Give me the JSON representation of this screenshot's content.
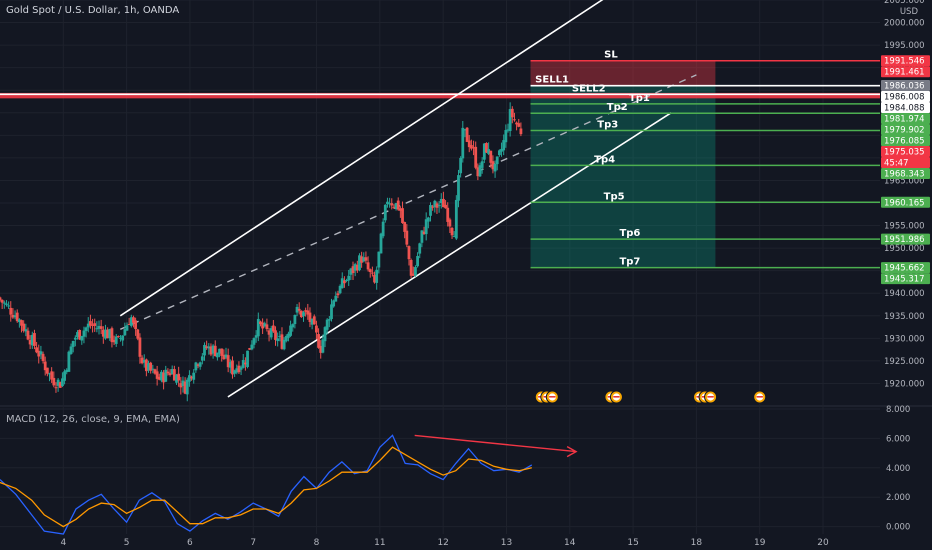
{
  "header": {
    "title": "Gold Spot / U.S. Dollar, 1h, OANDA",
    "currency": "USD"
  },
  "macd_label": "MACD (12, 26, close, 9, EMA, EMA)",
  "colors": {
    "background": "#131722",
    "bull": "#26a69a",
    "bear": "#ef5350",
    "channel": "#ffffff",
    "sl_red": "#f23645",
    "tp_green": "#4caf50",
    "macd_blue": "#2962ff",
    "signal_orange": "#ff9800"
  },
  "chart_data": [
    {
      "type": "candlestick",
      "title": "Gold Spot / U.S. Dollar, 1h, OANDA",
      "y_axis_unit": "USD",
      "ylim": [
        1915,
        2005
      ],
      "y_ticks": [
        1920,
        1925,
        1930,
        1935,
        1940,
        1945,
        1950,
        1955,
        1960,
        1965,
        1970,
        1975,
        1980,
        1985,
        1990,
        1995,
        2000,
        2005
      ],
      "x_tick_labels": [
        "4",
        "5",
        "6",
        "7",
        "8",
        "11",
        "12",
        "13",
        "14",
        "15",
        "18",
        "19",
        "20"
      ],
      "x_tick_positions": [
        4,
        5,
        6,
        7,
        8,
        9,
        10,
        11,
        12,
        13,
        14,
        15,
        16
      ],
      "xlim": [
        3.0,
        16.9
      ],
      "path_x": [
        3.0,
        3.3,
        3.6,
        3.85,
        4.0,
        4.2,
        4.45,
        4.65,
        4.9,
        5.1,
        5.3,
        5.55,
        5.75,
        5.95,
        6.1,
        6.3,
        6.5,
        6.7,
        6.9,
        7.1,
        7.3,
        7.5,
        7.7,
        7.9,
        8.1,
        8.3,
        8.55,
        8.75,
        8.95,
        9.15,
        9.35,
        9.55,
        9.7,
        9.85,
        10.05,
        10.2,
        10.35,
        10.5,
        10.6,
        10.7,
        10.85,
        11.0,
        11.1,
        11.25
      ],
      "path_close": [
        1939,
        1935,
        1928,
        1921,
        1920,
        1930,
        1933,
        1932,
        1929,
        1935,
        1924,
        1921,
        1923,
        1919,
        1924,
        1928,
        1927,
        1923,
        1925,
        1933,
        1931,
        1929,
        1936,
        1935,
        1928,
        1939,
        1944,
        1948,
        1942,
        1961,
        1959,
        1943,
        1953,
        1959,
        1960,
        1953,
        1976,
        1972,
        1966,
        1973,
        1967,
        1974,
        1980,
        1976
      ],
      "levels": [
        {
          "label": "SL",
          "value": 1991.546,
          "role": "stop"
        },
        {
          "label": "SELL1",
          "value": 1986.008,
          "role": "entry"
        },
        {
          "label": "SELL2",
          "value": 1984.088,
          "role": "entry"
        },
        {
          "label": "Tp1",
          "value": 1981.974,
          "role": "target"
        },
        {
          "label": "Tp2",
          "value": 1979.902,
          "role": "target"
        },
        {
          "label": "Tp3",
          "value": 1976.085,
          "role": "target"
        },
        {
          "label": "Tp4",
          "value": 1968.343,
          "role": "target"
        },
        {
          "label": "Tp5",
          "value": 1960.165,
          "role": "target"
        },
        {
          "label": "Tp6",
          "value": 1951.986,
          "role": "target"
        },
        {
          "label": "Tp7",
          "value": 1945.662,
          "role": "target"
        }
      ],
      "resistance_zone": [
        1983.2,
        1984.4
      ],
      "price_tags": [
        {
          "text": "1991.546",
          "value": 1991.546,
          "color": "#f23645",
          "fg": "#ffffff"
        },
        {
          "text": "1991.461",
          "value": 1991.461,
          "color": "#f23645",
          "fg": "#ffffff"
        },
        {
          "text": "1986.036",
          "value": 1986.036,
          "color": "#787b86",
          "fg": "#ffffff"
        },
        {
          "text": "1986.008",
          "value": 1986.008,
          "color": "#ffffff",
          "fg": "#131722"
        },
        {
          "text": "1984.088",
          "value": 1984.088,
          "color": "#ffffff",
          "fg": "#131722"
        },
        {
          "text": "1981.974",
          "value": 1981.974,
          "color": "#4caf50",
          "fg": "#ffffff"
        },
        {
          "text": "1979.902",
          "value": 1979.902,
          "color": "#4caf50",
          "fg": "#ffffff"
        },
        {
          "text": "1976.085",
          "value": 1976.085,
          "color": "#4caf50",
          "fg": "#ffffff"
        },
        {
          "text": "1975.035",
          "value": 1975.035,
          "color": "#f23645",
          "fg": "#ffffff"
        },
        {
          "text": "45:47",
          "value": 1972.9,
          "color": "#f23645",
          "fg": "#ffffff"
        },
        {
          "text": "1968.343",
          "value": 1968.343,
          "color": "#4caf50",
          "fg": "#ffffff"
        },
        {
          "text": "1960.165",
          "value": 1960.165,
          "color": "#4caf50",
          "fg": "#ffffff"
        },
        {
          "text": "1951.986",
          "value": 1951.986,
          "color": "#4caf50",
          "fg": "#ffffff"
        },
        {
          "text": "1945.662",
          "value": 1945.662,
          "color": "#4caf50",
          "fg": "#ffffff"
        },
        {
          "text": "1945.317",
          "value": 1945.317,
          "color": "#4caf50",
          "fg": "#ffffff"
        }
      ],
      "event_markers": [
        {
          "x": 11.55,
          "count": 3
        },
        {
          "x": 12.65,
          "count": 2
        },
        {
          "x": 14.05,
          "count": 3
        },
        {
          "x": 15.0,
          "count": 1
        }
      ]
    },
    {
      "type": "line",
      "title": "MACD (12, 26, close, 9, EMA, EMA)",
      "ylim": [
        -0.5,
        8.2
      ],
      "y_ticks": [
        0,
        2,
        4,
        6,
        8
      ],
      "y_tick_labels": [
        "0.000",
        "2.000",
        "4.000",
        "6.000",
        "8.000"
      ],
      "series": [
        {
          "role": "macd",
          "color": "#2962ff",
          "x": [
            3.0,
            3.25,
            3.5,
            3.7,
            4.0,
            4.2,
            4.4,
            4.6,
            4.8,
            5.0,
            5.2,
            5.4,
            5.6,
            5.8,
            6.0,
            6.2,
            6.4,
            6.6,
            6.8,
            7.0,
            7.2,
            7.4,
            7.6,
            7.8,
            8.0,
            8.2,
            8.4,
            8.6,
            8.8,
            9.0,
            9.2,
            9.4,
            9.6,
            9.8,
            10.0,
            10.2,
            10.4,
            10.6,
            10.8,
            11.0,
            11.2,
            11.4
          ],
          "y": [
            3.2,
            2.2,
            0.8,
            -0.3,
            -0.5,
            1.2,
            1.8,
            2.2,
            1.2,
            0.3,
            1.8,
            2.3,
            1.7,
            0.2,
            -0.3,
            0.4,
            0.9,
            0.5,
            1.0,
            1.6,
            1.2,
            0.7,
            2.4,
            3.4,
            2.6,
            3.7,
            4.4,
            3.6,
            3.8,
            5.4,
            6.2,
            4.3,
            4.2,
            3.6,
            3.2,
            4.3,
            5.3,
            4.3,
            3.8,
            3.9,
            3.7,
            4.2
          ]
        },
        {
          "role": "signal",
          "color": "#ff9800",
          "x": [
            3.0,
            3.25,
            3.5,
            3.7,
            4.0,
            4.2,
            4.4,
            4.6,
            4.8,
            5.0,
            5.2,
            5.4,
            5.6,
            5.8,
            6.0,
            6.2,
            6.4,
            6.6,
            6.8,
            7.0,
            7.2,
            7.4,
            7.6,
            7.8,
            8.0,
            8.2,
            8.4,
            8.6,
            8.8,
            9.0,
            9.2,
            9.4,
            9.6,
            9.8,
            10.0,
            10.2,
            10.4,
            10.6,
            10.8,
            11.0,
            11.2,
            11.4
          ],
          "y": [
            3.0,
            2.6,
            1.8,
            0.8,
            0.0,
            0.5,
            1.2,
            1.6,
            1.5,
            0.9,
            1.3,
            1.8,
            1.8,
            1.0,
            0.2,
            0.2,
            0.6,
            0.6,
            0.8,
            1.2,
            1.2,
            0.9,
            1.6,
            2.5,
            2.6,
            3.1,
            3.7,
            3.7,
            3.7,
            4.5,
            5.4,
            4.9,
            4.4,
            3.9,
            3.5,
            3.8,
            4.6,
            4.5,
            4.1,
            3.9,
            3.8,
            4.0
          ]
        }
      ],
      "divergence_arrow": {
        "x1": 9.55,
        "y1": 6.2,
        "x2": 12.1,
        "y2": 5.1
      }
    }
  ]
}
